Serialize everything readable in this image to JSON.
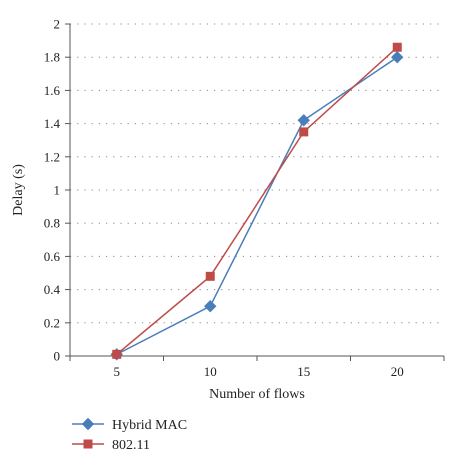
{
  "chart_data": {
    "type": "line",
    "xlabel": "Number of flows",
    "ylabel": "Delay (s)",
    "x": [
      5,
      10,
      15,
      20
    ],
    "x_ticks": [
      "5",
      "10",
      "15",
      "20"
    ],
    "ylim": [
      0,
      2
    ],
    "y_ticks": [
      "0",
      "0.2",
      "0.4",
      "0.6",
      "0.8",
      "1",
      "1.2",
      "1.4",
      "1.6",
      "1.8",
      "2"
    ],
    "grid": "horizontal dotted",
    "legend_position": "bottom-left",
    "series": [
      {
        "name": "Hybrid MAC",
        "values": [
          0.01,
          0.3,
          1.42,
          1.8
        ],
        "color": "#4a7ebb",
        "marker": "diamond"
      },
      {
        "name": "802.11",
        "values": [
          0.01,
          0.48,
          1.35,
          1.86
        ],
        "color": "#be4b48",
        "marker": "square"
      }
    ]
  }
}
